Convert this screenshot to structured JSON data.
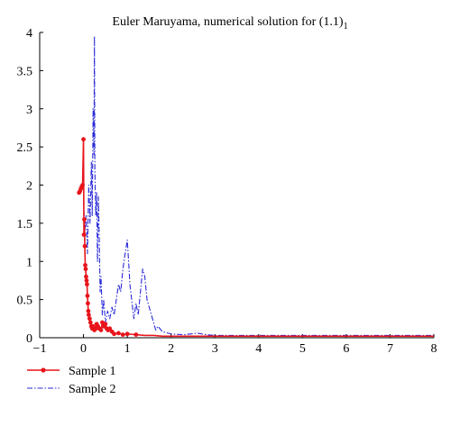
{
  "chart_data": {
    "type": "line",
    "title": "Euler Maruyama, numerical solution for (1.1)",
    "title_subscript": "1",
    "xlabel": "",
    "ylabel": "",
    "xlim": [
      -1,
      8
    ],
    "ylim": [
      0,
      4
    ],
    "x_ticks": [
      "-1",
      "0",
      "1",
      "2",
      "3",
      "4",
      "5",
      "6",
      "7",
      "8"
    ],
    "y_ticks": [
      "0",
      "0.5",
      "1",
      "1.5",
      "2",
      "2.5",
      "3",
      "3.5",
      "4"
    ],
    "grid": false,
    "legend_position": "bottom-left",
    "series": [
      {
        "name": "Sample 1",
        "color": "#e8141b",
        "style": "solid-with-dot-markers",
        "x": [
          -0.1,
          -0.08,
          -0.06,
          -0.04,
          -0.02,
          0,
          0.01,
          0.02,
          0.03,
          0.04,
          0.05,
          0.06,
          0.07,
          0.08,
          0.09,
          0.1,
          0.11,
          0.12,
          0.14,
          0.16,
          0.18,
          0.2,
          0.22,
          0.25,
          0.28,
          0.3,
          0.33,
          0.36,
          0.4,
          0.43,
          0.46,
          0.5,
          0.53,
          0.56,
          0.6,
          0.65,
          0.7,
          0.8,
          0.9,
          1.0,
          1.2,
          1.4,
          1.6,
          1.8,
          2.0,
          2.5,
          3.0,
          4.0,
          5.0,
          6.0,
          7.0,
          8.0
        ],
        "values": [
          1.9,
          1.92,
          1.95,
          1.98,
          2.0,
          2.6,
          1.35,
          1.55,
          1.2,
          0.95,
          0.9,
          0.8,
          0.75,
          0.7,
          0.55,
          0.45,
          0.35,
          0.3,
          0.25,
          0.2,
          0.15,
          0.12,
          0.15,
          0.1,
          0.12,
          0.18,
          0.15,
          0.12,
          0.1,
          0.2,
          0.15,
          0.18,
          0.12,
          0.1,
          0.12,
          0.08,
          0.05,
          0.06,
          0.04,
          0.05,
          0.04,
          0.03,
          0.03,
          0.02,
          0.02,
          0.02,
          0.02,
          0.02,
          0.02,
          0.02,
          0.02,
          0.02
        ]
      },
      {
        "name": "Sample 2",
        "color": "#2b2bd9",
        "style": "dash-dot",
        "x": [
          0,
          0.03,
          0.06,
          0.09,
          0.12,
          0.15,
          0.18,
          0.2,
          0.22,
          0.24,
          0.25,
          0.26,
          0.28,
          0.3,
          0.32,
          0.34,
          0.36,
          0.38,
          0.4,
          0.43,
          0.46,
          0.5,
          0.55,
          0.6,
          0.65,
          0.7,
          0.75,
          0.8,
          0.85,
          0.9,
          0.95,
          1.0,
          1.03,
          1.06,
          1.1,
          1.15,
          1.2,
          1.25,
          1.3,
          1.35,
          1.4,
          1.45,
          1.5,
          1.55,
          1.6,
          1.65,
          1.7,
          1.8,
          2.0,
          2.3,
          2.6,
          2.8,
          3.0,
          4.0,
          5.0,
          6.0,
          7.0,
          8.0
        ],
        "values": [
          1.8,
          1.4,
          1.6,
          1.1,
          2.0,
          1.5,
          2.3,
          1.6,
          3.0,
          2.4,
          3.95,
          2.2,
          1.6,
          1.9,
          1.0,
          1.85,
          1.3,
          0.6,
          0.8,
          0.3,
          0.5,
          0.2,
          0.35,
          0.25,
          0.4,
          0.3,
          0.5,
          0.7,
          0.6,
          0.9,
          1.1,
          1.28,
          1.0,
          0.7,
          0.5,
          0.25,
          0.45,
          0.3,
          0.6,
          0.9,
          0.8,
          0.5,
          0.4,
          0.3,
          0.2,
          0.1,
          0.15,
          0.08,
          0.05,
          0.04,
          0.06,
          0.04,
          0.03,
          0.03,
          0.03,
          0.03,
          0.03,
          0.03
        ]
      }
    ]
  }
}
